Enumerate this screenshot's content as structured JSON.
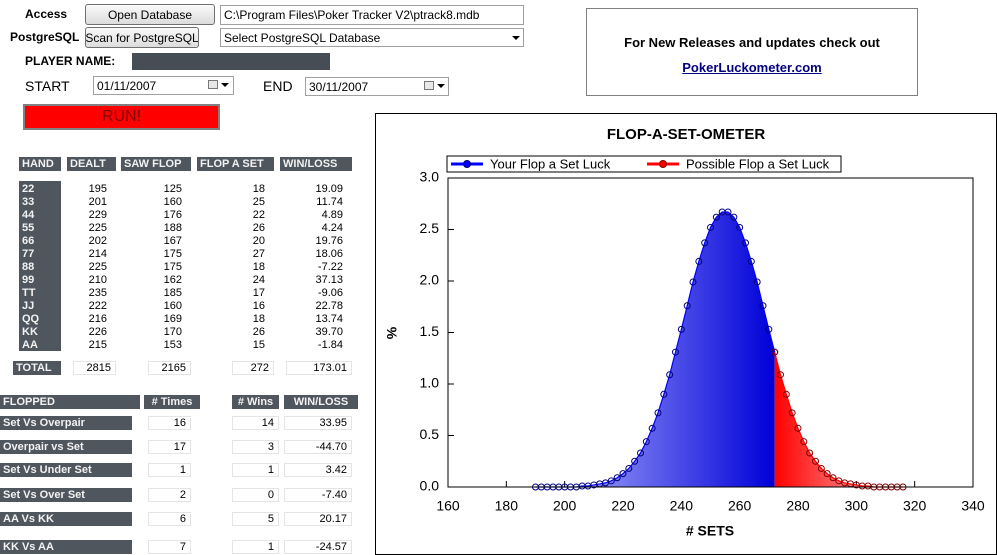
{
  "form": {
    "access_label": "Access",
    "open_button": "Open Database",
    "db_path": "C:\\Program Files\\Poker Tracker V2\\ptrack8.mdb",
    "postgres_label": "PostgreSQL",
    "scan_button": "Scan for PostgreSQL",
    "postgres_select": "Select PostgreSQL Database",
    "player_label": "PLAYER NAME:",
    "start_label": "START",
    "start_date": "01/11/2007",
    "end_label": "END",
    "end_date": "30/11/2007",
    "run_button": "RUN!"
  },
  "info": {
    "text": "For New Releases and updates check out",
    "link": "PokerLuckometer.com"
  },
  "hand_table": {
    "header": [
      "HAND",
      "DEALT",
      "SAW FLOP",
      "FLOP A SET",
      "WIN/LOSS"
    ],
    "rows": [
      [
        "22",
        "195",
        "125",
        "18",
        "19.09"
      ],
      [
        "33",
        "201",
        "160",
        "25",
        "11.74"
      ],
      [
        "44",
        "229",
        "176",
        "22",
        "4.89"
      ],
      [
        "55",
        "225",
        "188",
        "26",
        "4.24"
      ],
      [
        "66",
        "202",
        "167",
        "20",
        "19.76"
      ],
      [
        "77",
        "214",
        "175",
        "27",
        "18.06"
      ],
      [
        "88",
        "225",
        "175",
        "18",
        "-7.22"
      ],
      [
        "99",
        "210",
        "162",
        "24",
        "37.13"
      ],
      [
        "TT",
        "235",
        "185",
        "17",
        "-9.06"
      ],
      [
        "JJ",
        "222",
        "160",
        "16",
        "22.78"
      ],
      [
        "QQ",
        "216",
        "169",
        "18",
        "13.74"
      ],
      [
        "KK",
        "226",
        "170",
        "26",
        "39.70"
      ],
      [
        "AA",
        "215",
        "153",
        "15",
        "-1.84"
      ]
    ],
    "total": [
      "TOTAL",
      "2815",
      "2165",
      "272",
      "173.01"
    ]
  },
  "flopped_table": {
    "header": [
      "FLOPPED",
      "# Times",
      "# Wins",
      "WIN/LOSS"
    ],
    "rows": [
      [
        "Set Vs Overpair",
        "16",
        "14",
        "33.95"
      ],
      [
        "Overpair vs Set",
        "17",
        "3",
        "-44.70"
      ],
      [
        "Set Vs Under Set",
        "1",
        "1",
        "3.42"
      ],
      [
        "Set Vs Over Set",
        "2",
        "0",
        "-7.40"
      ],
      [
        "AA Vs KK",
        "6",
        "5",
        "20.17"
      ],
      [
        "KK Vs AA",
        "7",
        "1",
        "-24.57"
      ]
    ]
  },
  "chart_data": {
    "type": "area",
    "title": "FLOP-A-SET-OMETER",
    "x_label": "# SETS",
    "y_label": "%",
    "xlim": [
      160,
      340
    ],
    "xticks": [
      160,
      180,
      200,
      220,
      240,
      260,
      280,
      300,
      320,
      340
    ],
    "ylim": [
      0,
      3
    ],
    "yticks": [
      {
        "value": 0,
        "label": "0.0"
      },
      0.5,
      {
        "value": 1,
        "label": "1.0"
      },
      1.5,
      {
        "value": 2,
        "label": "2.0"
      },
      2.5,
      {
        "value": 3,
        "label": "3.0"
      }
    ],
    "legend": "top",
    "series": [
      {
        "name": "Your Flop a Set Luck",
        "color": "#0000ff",
        "x": [
          190,
          192,
          194,
          196,
          198,
          200,
          202,
          204,
          206,
          208,
          210,
          212,
          214,
          216,
          218,
          220,
          222,
          224,
          226,
          228,
          230,
          232,
          234,
          236,
          238,
          240,
          242,
          244,
          246,
          248,
          250,
          252,
          254,
          256,
          258,
          260,
          262,
          264,
          266,
          268,
          270,
          272
        ],
        "values": [
          0,
          0,
          0,
          0,
          0,
          0,
          0,
          0,
          0.01,
          0.01,
          0.02,
          0.03,
          0.04,
          0.06,
          0.09,
          0.13,
          0.18,
          0.25,
          0.33,
          0.44,
          0.57,
          0.72,
          0.9,
          1.09,
          1.31,
          1.53,
          1.76,
          1.99,
          2.19,
          2.37,
          2.52,
          2.62,
          2.67,
          2.67,
          2.62,
          2.52,
          2.37,
          2.19,
          1.99,
          1.76,
          1.53,
          1.31
        ]
      },
      {
        "name": "Possible Flop a Set Luck",
        "color": "#ff0000",
        "x": [
          272,
          274,
          276,
          278,
          280,
          282,
          284,
          286,
          288,
          290,
          292,
          294,
          296,
          298,
          300,
          302,
          304,
          306,
          308,
          310,
          312,
          314,
          316
        ],
        "values": [
          1.31,
          1.09,
          0.9,
          0.72,
          0.57,
          0.44,
          0.33,
          0.25,
          0.18,
          0.13,
          0.09,
          0.06,
          0.04,
          0.03,
          0.02,
          0.01,
          0.01,
          0,
          0,
          0,
          0,
          0,
          0
        ]
      }
    ]
  }
}
